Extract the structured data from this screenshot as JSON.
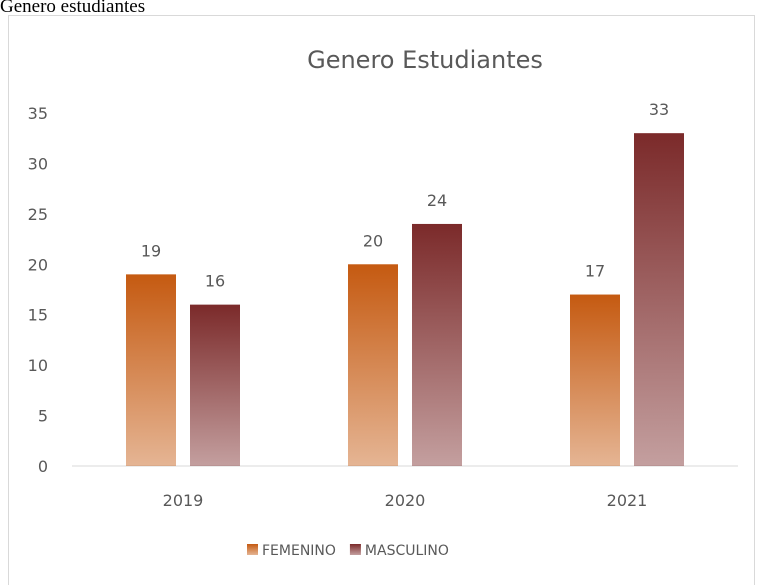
{
  "header": {
    "title": "Genero estudiantes"
  },
  "chart_data": {
    "type": "bar",
    "title": "Genero Estudiantes",
    "categories": [
      "2019",
      "2020",
      "2021"
    ],
    "series": [
      {
        "name": "FEMENINO",
        "color": "#c55a11",
        "values": [
          19,
          20,
          17
        ]
      },
      {
        "name": "MASCULINO",
        "color": "#7b2a2a",
        "values": [
          16,
          24,
          33
        ]
      }
    ],
    "ylim": [
      0,
      35
    ],
    "yticks": [
      0,
      5,
      10,
      15,
      20,
      25,
      30,
      35
    ],
    "grid": false,
    "legend": "bottom"
  }
}
